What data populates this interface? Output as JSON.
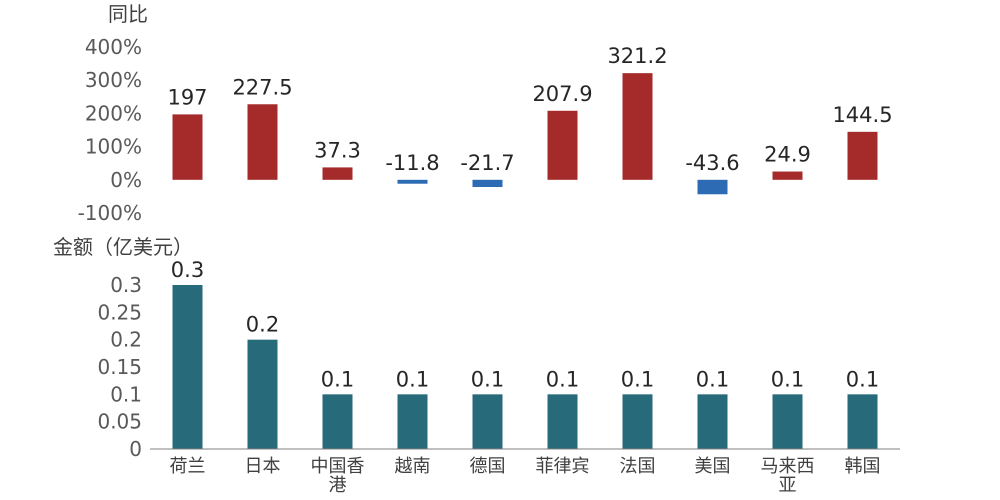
{
  "chart_data": [
    {
      "type": "bar",
      "title": "同比",
      "categories": [
        "荷兰",
        "日本",
        "中国香港",
        "越南",
        "德国",
        "菲律宾",
        "法国",
        "美国",
        "马来西亚",
        "韩国"
      ],
      "values": [
        197,
        227.5,
        37.3,
        -11.8,
        -21.7,
        207.9,
        321.2,
        -43.6,
        24.9,
        144.5
      ],
      "value_labels": [
        "197",
        "227.5",
        "37.3",
        "-11.8",
        "-21.7",
        "207.9",
        "321.2",
        "-43.6",
        "24.9",
        "144.5"
      ],
      "ylim": [
        -100,
        400
      ],
      "ytick_labels": [
        "400%",
        "300%",
        "200%",
        "100%",
        "0%",
        "-100%"
      ],
      "colors": {
        "positive": "#A52A2A",
        "negative": "#2E6BB5"
      },
      "grid": false
    },
    {
      "type": "bar",
      "title": "金额（亿美元）",
      "categories": [
        "荷兰",
        "日本",
        "中国香港",
        "越南",
        "德国",
        "菲律宾",
        "法国",
        "美国",
        "马来西亚",
        "韩国"
      ],
      "category_labels": [
        [
          "荷兰"
        ],
        [
          "日本"
        ],
        [
          "中国香",
          "港"
        ],
        [
          "越南"
        ],
        [
          "德国"
        ],
        [
          "菲律宾"
        ],
        [
          "法国"
        ],
        [
          "美国"
        ],
        [
          "马来西",
          "亚"
        ],
        [
          "韩国"
        ]
      ],
      "values": [
        0.3,
        0.2,
        0.1,
        0.1,
        0.1,
        0.1,
        0.1,
        0.1,
        0.1,
        0.1
      ],
      "value_labels": [
        "0.3",
        "0.2",
        "0.1",
        "0.1",
        "0.1",
        "0.1",
        "0.1",
        "0.1",
        "0.1",
        "0.1"
      ],
      "ylim": [
        0,
        0.3
      ],
      "ytick_labels": [
        "0.3",
        "0.25",
        "0.2",
        "0.15",
        "0.1",
        "0.05",
        "0"
      ],
      "colors": {
        "bar": "#276A7A"
      },
      "grid": false
    }
  ]
}
